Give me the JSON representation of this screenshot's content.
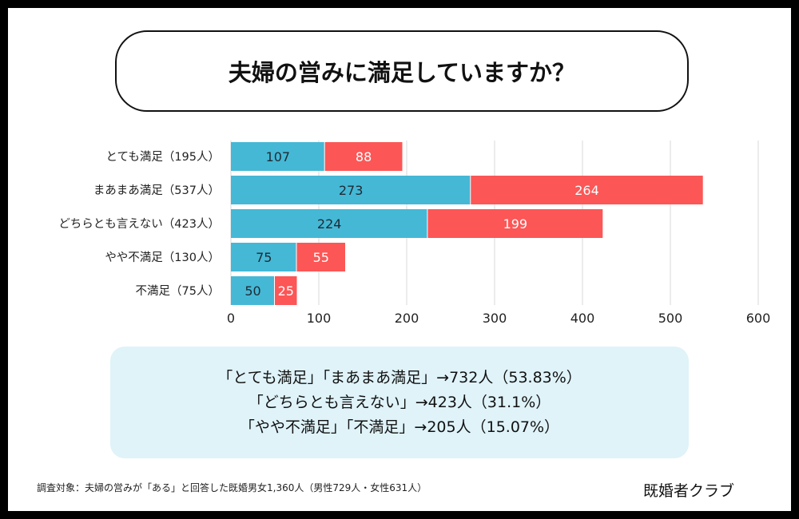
{
  "title": "夫婦の営みに満足していますか？",
  "colors": {
    "series1": "#45b8d6",
    "series2": "#fc5656",
    "grid": "#d9d9d9"
  },
  "chart_data": {
    "type": "bar",
    "orientation": "horizontal",
    "stacked": true,
    "categories": [
      "とても満足（195人）",
      "まあまあ満足（537人）",
      "どちらとも言えない（423人）",
      "やや不満足（130人）",
      "不満足（75人）"
    ],
    "series": [
      {
        "values": [
          107,
          273,
          224,
          75,
          50
        ]
      },
      {
        "values": [
          88,
          264,
          199,
          55,
          25
        ]
      }
    ],
    "xlim": [
      0,
      600
    ],
    "xticks": [
      0,
      100,
      200,
      300,
      400,
      500,
      600
    ],
    "grid": true
  },
  "summary": {
    "lines": [
      "「とても満足」「まあまあ満足」→732人（53.83%）",
      "「どちらとも言えない」→423人（31.1%）",
      "「やや不満足」「不満足」→205人（15.07%）"
    ]
  },
  "footnote": "調査対象：夫婦の営みが「ある」と回答した既婚男女1,360人（男性729人・女性631人）",
  "brand": "既婚者クラブ"
}
